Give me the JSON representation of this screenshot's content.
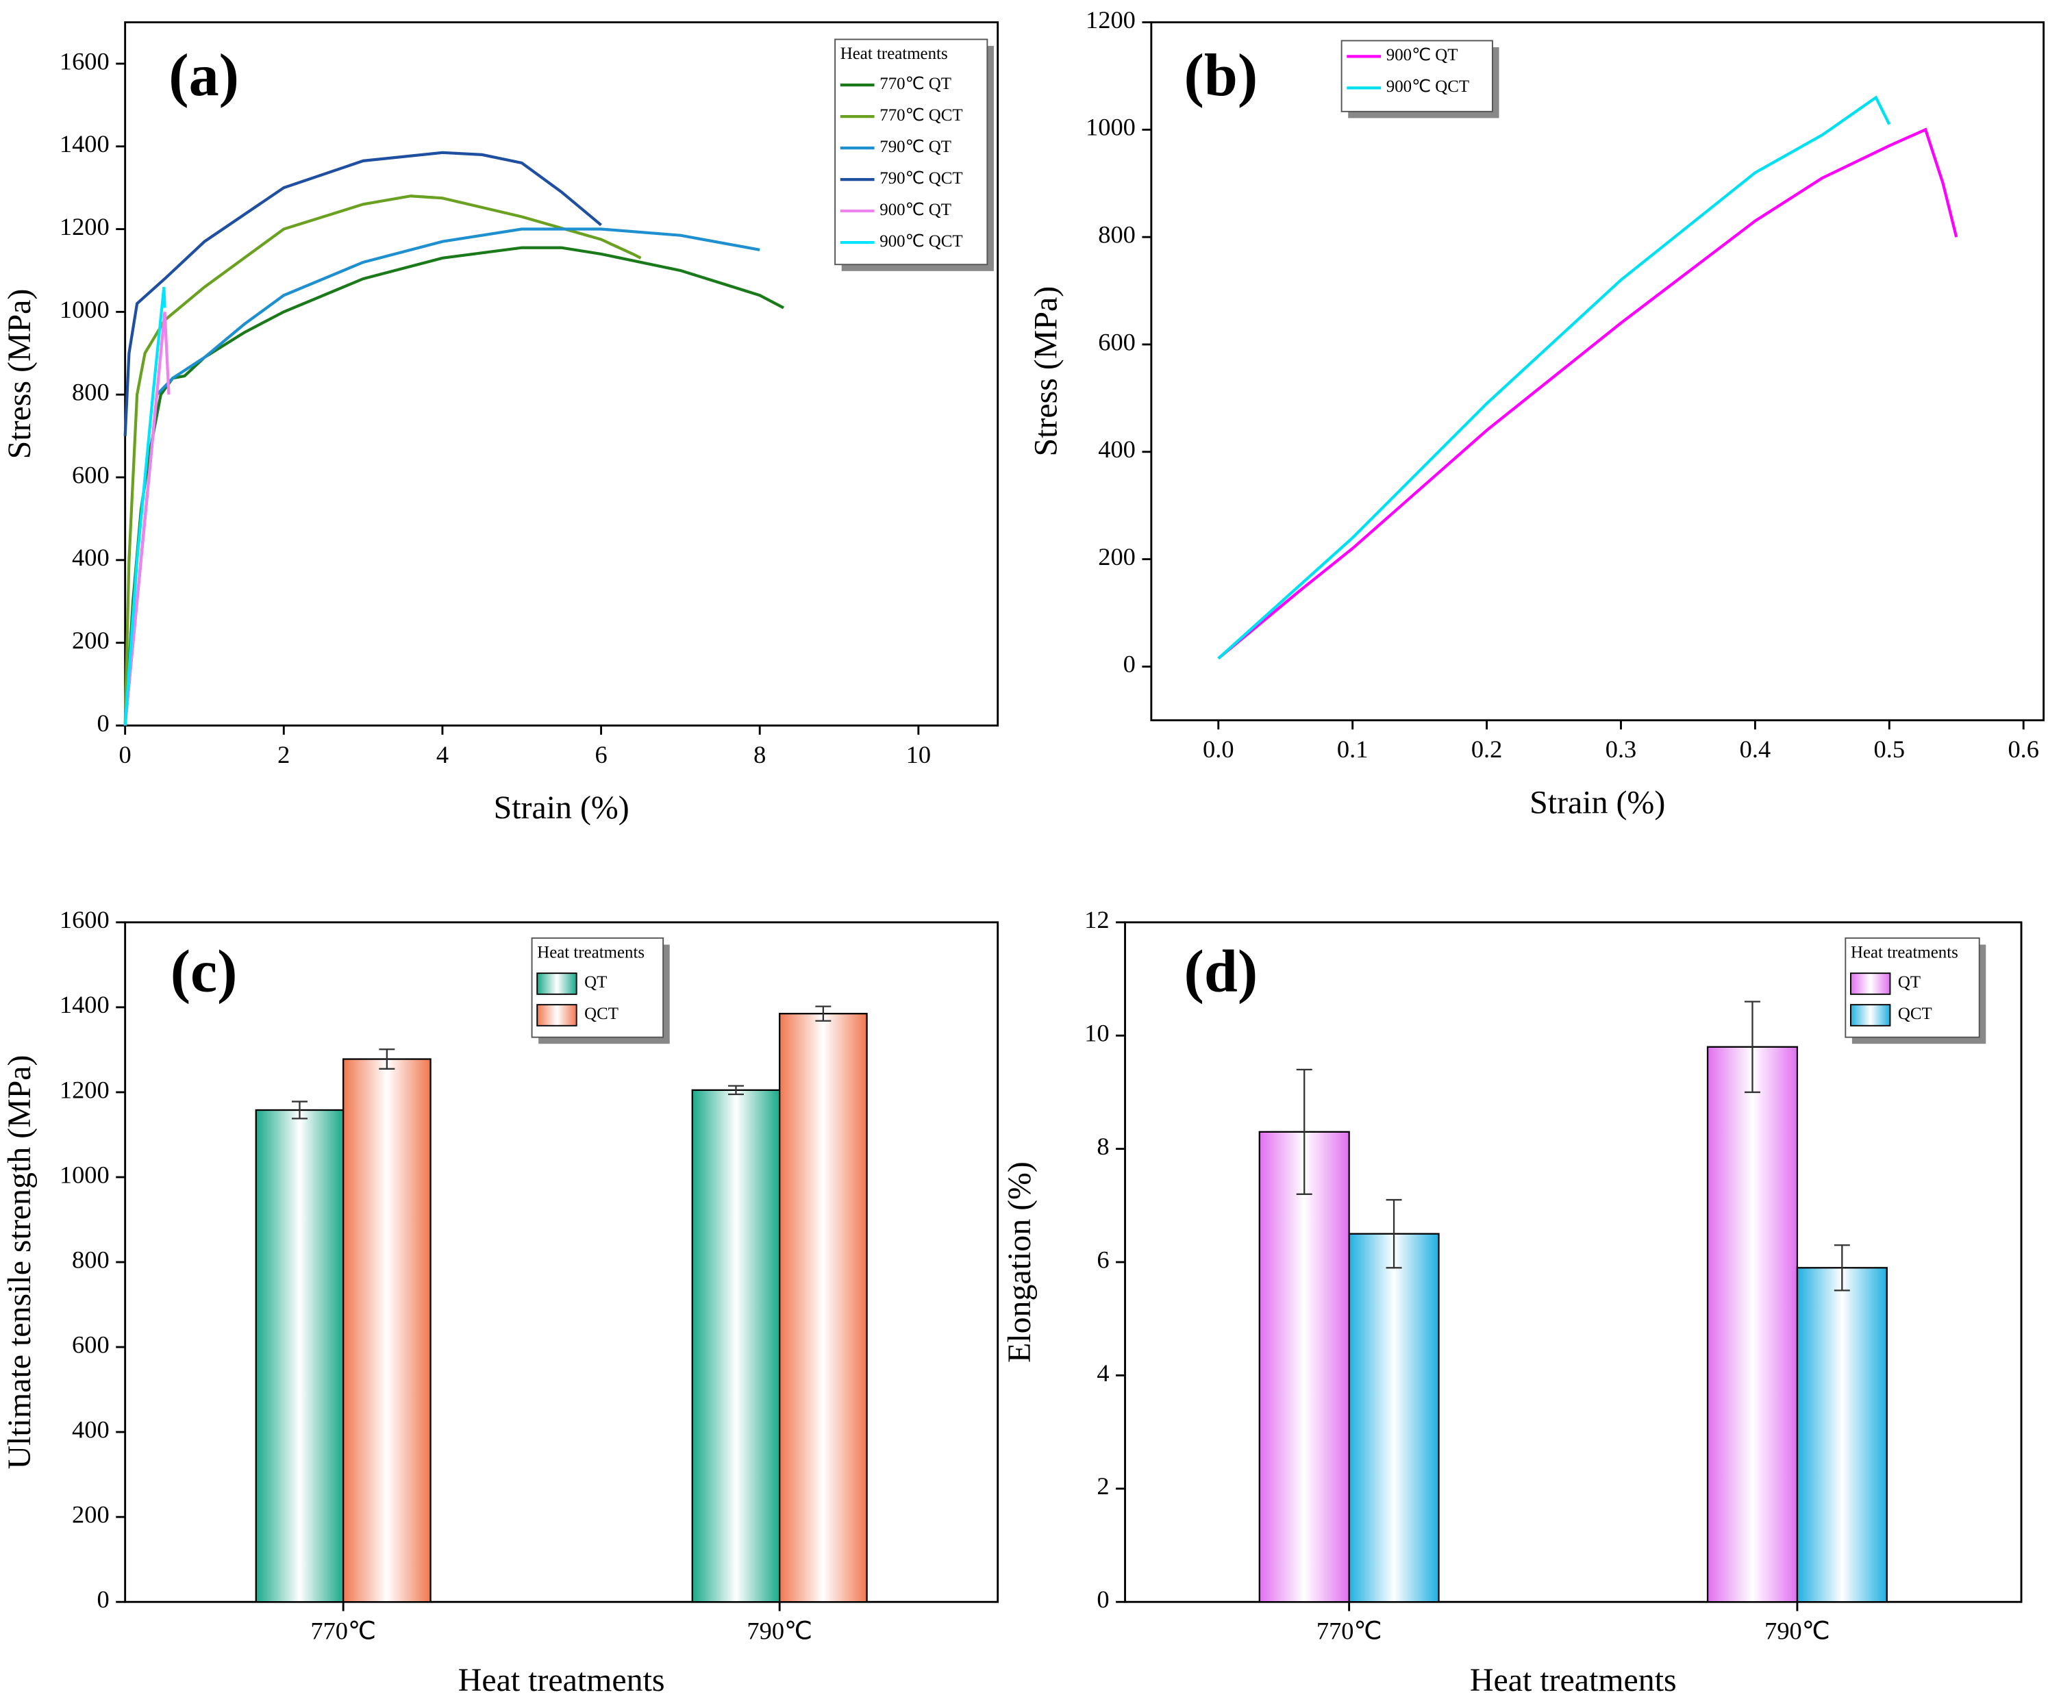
{
  "chart_data": [
    {
      "type": "line",
      "panel_label": "(a)",
      "xlabel": "Strain (%)",
      "ylabel": "Stress (MPa)",
      "legend_title": "Heat treatments",
      "xlim": [
        0,
        11
      ],
      "xticks": [
        0,
        2,
        4,
        6,
        8,
        10
      ],
      "ylim": [
        0,
        1700
      ],
      "yticks": [
        0,
        200,
        400,
        600,
        800,
        1000,
        1200,
        1400,
        1600
      ],
      "series": [
        {
          "name": "770℃ QT",
          "color": "#1a7a1a",
          "x": [
            0,
            0.1,
            0.2,
            0.3,
            0.45,
            0.6,
            0.75,
            1,
            1.5,
            2,
            3,
            4,
            5,
            5.5,
            6,
            7,
            7.5,
            8,
            8.3
          ],
          "values": [
            0,
            300,
            520,
            650,
            800,
            840,
            845,
            890,
            950,
            1000,
            1080,
            1130,
            1155,
            1155,
            1140,
            1100,
            1070,
            1040,
            1010
          ]
        },
        {
          "name": "770℃ QCT",
          "color": "#6aa121",
          "x": [
            0,
            0.05,
            0.15,
            0.25,
            0.5,
            1,
            2,
            3,
            3.6,
            4,
            5,
            6,
            6.4,
            6.5
          ],
          "values": [
            0,
            400,
            800,
            900,
            980,
            1060,
            1200,
            1260,
            1280,
            1275,
            1230,
            1175,
            1140,
            1130
          ]
        },
        {
          "name": "790℃ QT",
          "color": "#1e90d0",
          "x": [
            0,
            0.2,
            0.4,
            0.6,
            1,
            1.5,
            2,
            3,
            4,
            5,
            6,
            7,
            8
          ],
          "values": [
            0,
            400,
            800,
            840,
            890,
            970,
            1040,
            1120,
            1170,
            1200,
            1200,
            1185,
            1150
          ]
        },
        {
          "name": "790℃ QCT",
          "color": "#1f4fa0",
          "x": [
            0,
            0.05,
            0.15,
            0.5,
            1,
            2,
            3,
            4,
            4.5,
            5,
            5.5,
            6
          ],
          "values": [
            700,
            900,
            1020,
            1080,
            1170,
            1300,
            1365,
            1385,
            1380,
            1360,
            1290,
            1210
          ]
        },
        {
          "name": "900℃ QT",
          "color": "#ee82ee",
          "x": [
            0,
            0.2,
            0.4,
            0.5,
            0.55
          ],
          "values": [
            0,
            400,
            800,
            1000,
            800
          ]
        },
        {
          "name": "900℃ QCT",
          "color": "#00e5ff",
          "x": [
            0,
            0.15,
            0.35,
            0.49,
            0.5
          ],
          "values": [
            0,
            400,
            800,
            1060,
            1010
          ]
        }
      ]
    },
    {
      "type": "line",
      "panel_label": "(b)",
      "xlabel": "Strain (%)",
      "ylabel": "Stress (MPa)",
      "xlim": [
        -0.05,
        0.615
      ],
      "xticks": [
        {
          "value": 0,
          "label": "0.0"
        },
        0.1,
        0.2,
        0.3,
        0.4,
        0.5,
        0.6
      ],
      "ylim": [
        -100,
        1200
      ],
      "yticks": [
        0,
        200,
        400,
        600,
        800,
        1000,
        1200
      ],
      "series": [
        {
          "name": "900℃ QT",
          "color": "#ff00ff",
          "x": [
            0,
            0.06,
            0.1,
            0.2,
            0.3,
            0.4,
            0.45,
            0.5,
            0.527,
            0.54,
            0.55
          ],
          "values": [
            15,
            140,
            220,
            440,
            640,
            830,
            910,
            970,
            1000,
            900,
            800
          ]
        },
        {
          "name": "900℃ QCT",
          "color": "#00e0f0",
          "x": [
            0,
            0.1,
            0.2,
            0.3,
            0.4,
            0.45,
            0.49,
            0.5
          ],
          "values": [
            15,
            240,
            490,
            720,
            920,
            990,
            1060,
            1010
          ]
        }
      ]
    },
    {
      "type": "bar",
      "panel_label": "(c)",
      "xlabel": "Heat treatments",
      "ylabel": "Ultimate tensile strength (MPa)",
      "legend_title": "Heat treatments",
      "categories": [
        "770℃",
        "790℃"
      ],
      "ylim": [
        0,
        1600
      ],
      "yticks": [
        0,
        200,
        400,
        600,
        800,
        1000,
        1200,
        1400,
        1600
      ],
      "series": [
        {
          "name": "QT",
          "color": "#1aaa8a",
          "values": [
            1158,
            1205
          ],
          "errors": [
            20,
            10
          ]
        },
        {
          "name": "QCT",
          "color": "#f07850",
          "values": [
            1278,
            1385
          ],
          "errors": [
            23,
            17
          ]
        }
      ]
    },
    {
      "type": "bar",
      "panel_label": "(d)",
      "xlabel": "Heat treatments",
      "ylabel": "Elongation (%)",
      "legend_title": "Heat treatments",
      "categories": [
        "770℃",
        "790℃"
      ],
      "ylim": [
        0,
        12
      ],
      "yticks": [
        0,
        2,
        4,
        6,
        8,
        10,
        12
      ],
      "series": [
        {
          "name": "QT",
          "color": "#e070f0",
          "values": [
            8.3,
            9.8
          ],
          "errors": [
            1.1,
            0.8
          ]
        },
        {
          "name": "QCT",
          "color": "#20b0e0",
          "values": [
            6.5,
            5.9
          ],
          "errors": [
            0.6,
            0.4
          ]
        }
      ]
    }
  ]
}
